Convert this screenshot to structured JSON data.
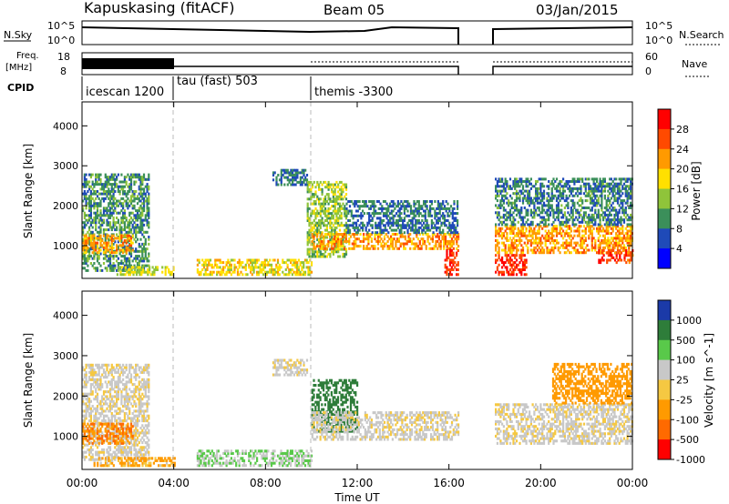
{
  "header": {
    "station": "Kapuskasing (fitACF)",
    "beam": "Beam 05",
    "date": "03/Jan/2015"
  },
  "top_panels": {
    "nsky_label": "N.Sky",
    "nsearch_label": "N.Search",
    "nsky_ticks": [
      "10^5",
      "10^0"
    ],
    "nsearch_ticks": [
      "10^5",
      "10^0"
    ],
    "freq_label_1": "Freq.",
    "freq_label_2": "[MHz]",
    "freq_ticks": [
      "18",
      "8"
    ],
    "nave_label": "Nave",
    "nave_ticks": [
      "60",
      "0"
    ],
    "cpid_label": "CPID",
    "cpid_segments": [
      {
        "label": "icescan 1200",
        "start_h": 0,
        "end_h": 4
      },
      {
        "label": "tau (fast) 503",
        "start_h": 4,
        "end_h": 10
      },
      {
        "label": "themis -3300",
        "start_h": 10,
        "end_h": 24
      }
    ]
  },
  "chart_data": [
    {
      "type": "heatmap",
      "title": "",
      "xlabel": "Time UT",
      "ylabel": "Slant Range [km]",
      "xlim": [
        0,
        24
      ],
      "ylim": [
        180,
        4600
      ],
      "x_ticks": [
        "00:00",
        "04:00",
        "08:00",
        "12:00",
        "16:00",
        "20:00",
        "00:00"
      ],
      "y_ticks": [
        "1000",
        "2000",
        "3000",
        "4000"
      ],
      "y_tick_values": [
        1000,
        2000,
        3000,
        4000
      ],
      "colorbar": {
        "label": "Power [dB]",
        "ticks": [
          "4",
          "8",
          "12",
          "16",
          "20",
          "24",
          "28"
        ],
        "colors": [
          "#0000ff",
          "#1f4ab8",
          "#3b8f5a",
          "#8fc43a",
          "#ffe000",
          "#ff9a00",
          "#ff4a00",
          "#ff0000"
        ]
      },
      "data_gaps_h": [
        [
          16.4,
          18.0
        ]
      ],
      "regions": [
        {
          "t": [
            0.0,
            2.9
          ],
          "r": [
            350,
            2800
          ],
          "level": 10
        },
        {
          "t": [
            0.0,
            2.2
          ],
          "r": [
            800,
            1250
          ],
          "level": 22
        },
        {
          "t": [
            1.5,
            4.0
          ],
          "r": [
            250,
            450
          ],
          "level": 16
        },
        {
          "t": [
            5.0,
            10.0
          ],
          "r": [
            250,
            650
          ],
          "level": 18
        },
        {
          "t": [
            8.3,
            9.8
          ],
          "r": [
            2500,
            2900
          ],
          "level": 8
        },
        {
          "t": [
            9.8,
            11.5
          ],
          "r": [
            700,
            2600
          ],
          "level": 14
        },
        {
          "t": [
            10.0,
            16.4
          ],
          "r": [
            900,
            1300
          ],
          "level": 22
        },
        {
          "t": [
            11.5,
            16.4
          ],
          "r": [
            1300,
            2100
          ],
          "level": 8
        },
        {
          "t": [
            15.8,
            16.4
          ],
          "r": [
            250,
            900
          ],
          "level": 28
        },
        {
          "t": [
            18.0,
            24.0
          ],
          "r": [
            800,
            1500
          ],
          "level": 22
        },
        {
          "t": [
            18.0,
            24.0
          ],
          "r": [
            1500,
            2700
          ],
          "level": 9
        },
        {
          "t": [
            18.0,
            19.4
          ],
          "r": [
            250,
            750
          ],
          "level": 28
        },
        {
          "t": [
            22.5,
            24.0
          ],
          "r": [
            550,
            900
          ],
          "level": 26
        }
      ]
    },
    {
      "type": "heatmap",
      "title": "",
      "xlabel": "Time UT",
      "ylabel": "Slant Range [km]",
      "xlim": [
        0,
        24
      ],
      "ylim": [
        180,
        4600
      ],
      "x_ticks": [
        "00:00",
        "04:00",
        "08:00",
        "12:00",
        "16:00",
        "20:00",
        "00:00"
      ],
      "y_ticks": [
        "1000",
        "2000",
        "3000",
        "4000"
      ],
      "y_tick_values": [
        1000,
        2000,
        3000,
        4000
      ],
      "colorbar": {
        "label": "Velocity [m s^-1]",
        "ticks": [
          "1000",
          "500",
          "100",
          "25",
          "-25",
          "-100",
          "-500",
          "-1000"
        ],
        "colors": [
          "#1b3aa8",
          "#2e7d3a",
          "#59c94a",
          "#c8c8c8",
          "#f5c842",
          "#ff9a00",
          "#ff6a00",
          "#ff0000"
        ]
      },
      "data_gaps_h": [
        [
          16.4,
          18.0
        ]
      ],
      "regions": [
        {
          "t": [
            0.0,
            2.9
          ],
          "r": [
            400,
            2800
          ],
          "v": 0
        },
        {
          "t": [
            0.0,
            2.2
          ],
          "r": [
            800,
            1300
          ],
          "v": -300
        },
        {
          "t": [
            0.5,
            4.0
          ],
          "r": [
            250,
            450
          ],
          "v": -80
        },
        {
          "t": [
            5.0,
            10.0
          ],
          "r": [
            250,
            650
          ],
          "v": 60
        },
        {
          "t": [
            8.3,
            9.8
          ],
          "r": [
            2500,
            2900
          ],
          "v": 0
        },
        {
          "t": [
            10.0,
            12.0
          ],
          "r": [
            1100,
            2400
          ],
          "v": 400
        },
        {
          "t": [
            10.0,
            16.4
          ],
          "r": [
            900,
            1600
          ],
          "v": 0
        },
        {
          "t": [
            18.0,
            24.0
          ],
          "r": [
            800,
            1800
          ],
          "v": 0
        },
        {
          "t": [
            20.5,
            24.0
          ],
          "r": [
            1800,
            2800
          ],
          "v": -150
        }
      ]
    }
  ]
}
